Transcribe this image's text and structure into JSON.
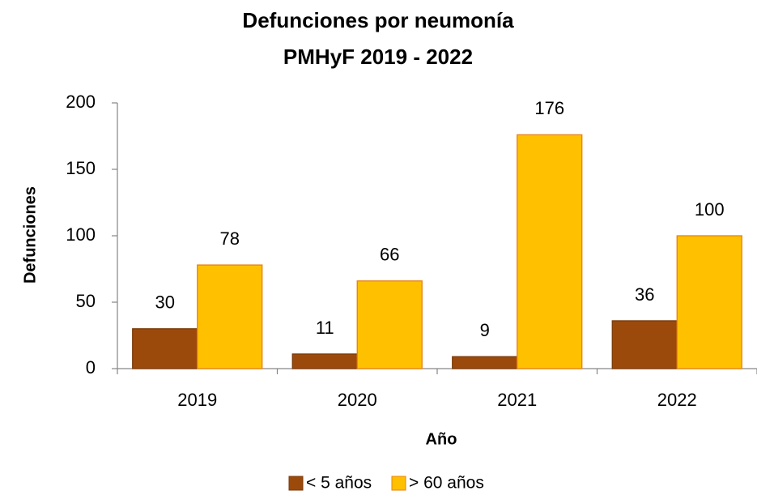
{
  "chart_data": {
    "type": "bar",
    "title": "Defunciones por neumonía",
    "subtitle": "PMHyF 2019 - 2022",
    "x_label": "Año",
    "y_label": "Defunciones",
    "categories": [
      "2019",
      "2020",
      "2021",
      "2022"
    ],
    "series": [
      {
        "name": "< 5 años",
        "color": "#9C4A0C",
        "values": [
          30,
          11,
          9,
          36
        ]
      },
      {
        "name": "> 60 años",
        "color": "#FFC000",
        "values": [
          78,
          66,
          176,
          100
        ]
      }
    ],
    "ylim": [
      0,
      200
    ],
    "yticks": [
      0,
      50,
      100,
      150,
      200
    ],
    "grid": false,
    "legend": "bottom"
  }
}
